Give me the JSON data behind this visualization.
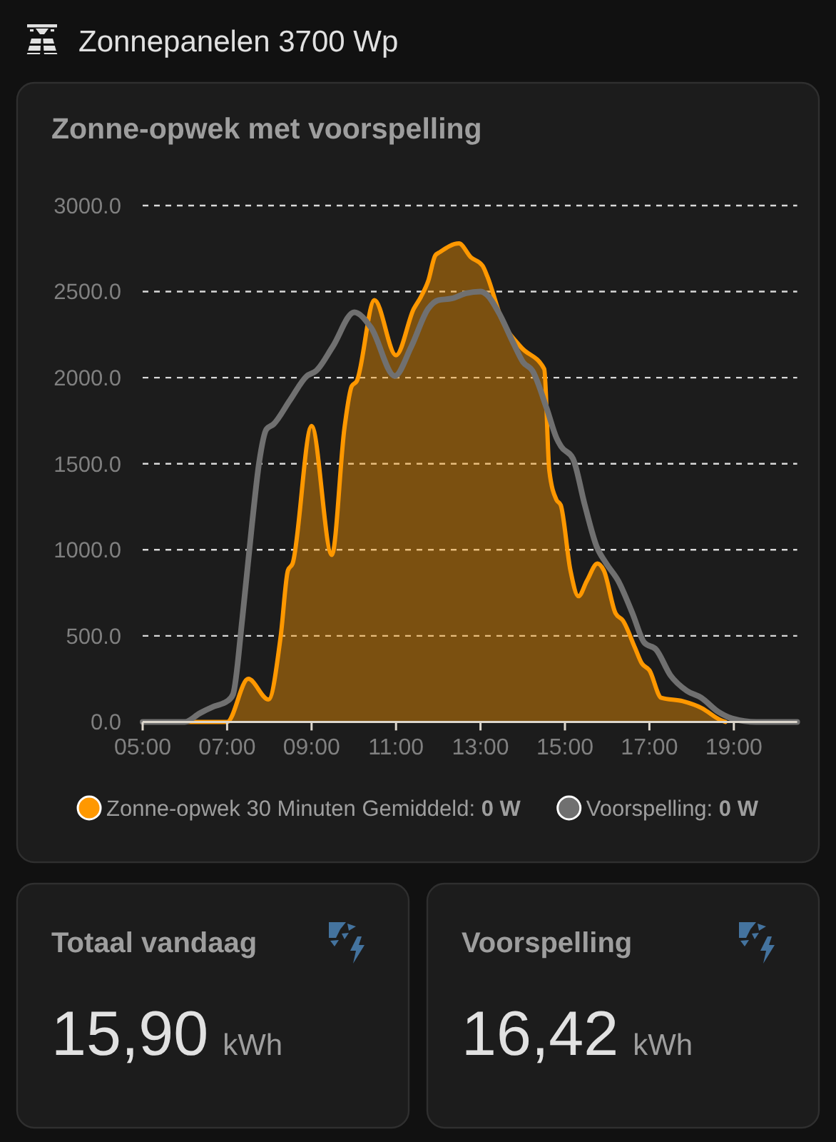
{
  "chart_data": [
    {
      "type": "area",
      "title": "Zonnepanelen 3700 Wp",
      "subtitle": "Zonne-opwek met voorspelling",
      "xlim": [
        5,
        20.5
      ],
      "xticks": [
        {
          "value": 5,
          "label": "05:00"
        },
        {
          "value": 7,
          "label": "07:00"
        },
        {
          "value": 9,
          "label": "09:00"
        },
        {
          "value": 11,
          "label": "11:00"
        },
        {
          "value": 13,
          "label": "13:00"
        },
        {
          "value": 15,
          "label": "15:00"
        },
        {
          "value": 17,
          "label": "17:00"
        },
        {
          "value": 19,
          "label": "19:00"
        }
      ],
      "ylim": [
        0,
        3000
      ],
      "yticks": [
        {
          "value": 0,
          "label": "0.0"
        },
        {
          "value": 500,
          "label": "500.0"
        },
        {
          "value": 1000,
          "label": "1000.0"
        },
        {
          "value": 1500,
          "label": "1500.0"
        },
        {
          "value": 2000,
          "label": "2000.0"
        },
        {
          "value": 2500,
          "label": "2500.0"
        },
        {
          "value": 3000,
          "label": "3000.0"
        }
      ],
      "grid": "y",
      "legend": "bottom",
      "series": [
        {
          "name": "Zonne-opwek 30 Minuten Gemiddeld: 0 W",
          "type": "area",
          "color": "#ff9800",
          "x": [
            5,
            6,
            7,
            7.5,
            7.98,
            8.27,
            8.44,
            8.55,
            9,
            9.48,
            9.78,
            9.95,
            10.07,
            10.49,
            11,
            11.42,
            11.59,
            11.76,
            11.93,
            12.04,
            12.49,
            12.77,
            13.05,
            13.16,
            13.5,
            13.95,
            14.51,
            14.63,
            14.8,
            14.9,
            15.13,
            15.32,
            15.52,
            15.77,
            15.92,
            16.2,
            16.37,
            16.66,
            16.82,
            17,
            17.28,
            17.79,
            18.24,
            18.69,
            18.8
          ],
          "values": [
            0,
            0,
            0,
            250,
            130,
            500,
            880,
            920,
            1720,
            970,
            1710,
            1950,
            1980,
            2450,
            2130,
            2400,
            2470,
            2560,
            2710,
            2730,
            2780,
            2700,
            2650,
            2590,
            2340,
            2180,
            2050,
            1460,
            1290,
            1260,
            880,
            730,
            820,
            920,
            880,
            630,
            590,
            430,
            340,
            300,
            140,
            120,
            80,
            10,
            0
          ]
        },
        {
          "name": "Voorspelling: 0 W",
          "type": "line",
          "color": "#707070",
          "x": [
            5,
            6,
            6.35,
            6.69,
            7,
            7.14,
            7.36,
            7.59,
            7.76,
            7.93,
            8.1,
            8.49,
            8.89,
            9.11,
            9.5,
            10.01,
            10.41,
            10.97,
            11.36,
            11.76,
            12,
            12.32,
            12.66,
            13,
            13.16,
            13.45,
            13.78,
            14.01,
            14.23,
            14.57,
            14.8,
            14.91,
            15.19,
            15.47,
            15.75,
            15.98,
            16.26,
            16.6,
            16.88,
            17.16,
            17.5,
            17.89,
            18.23,
            18.62,
            18.96,
            19.53,
            20.5
          ],
          "values": [
            0,
            0,
            50,
            90,
            120,
            160,
            600,
            1150,
            1510,
            1700,
            1730,
            1870,
            2010,
            2040,
            2180,
            2380,
            2290,
            2010,
            2180,
            2400,
            2450,
            2460,
            2490,
            2500,
            2480,
            2370,
            2200,
            2090,
            2040,
            1820,
            1650,
            1600,
            1530,
            1260,
            1020,
            920,
            820,
            630,
            460,
            420,
            270,
            180,
            140,
            60,
            20,
            0,
            0
          ]
        }
      ]
    },
    {
      "type": "other",
      "title": "Totaal vandaag",
      "annotations": [
        "15,90",
        "kWh"
      ]
    },
    {
      "type": "other",
      "title": "Voorspelling",
      "annotations": [
        "16,42",
        "kWh"
      ]
    }
  ]
}
